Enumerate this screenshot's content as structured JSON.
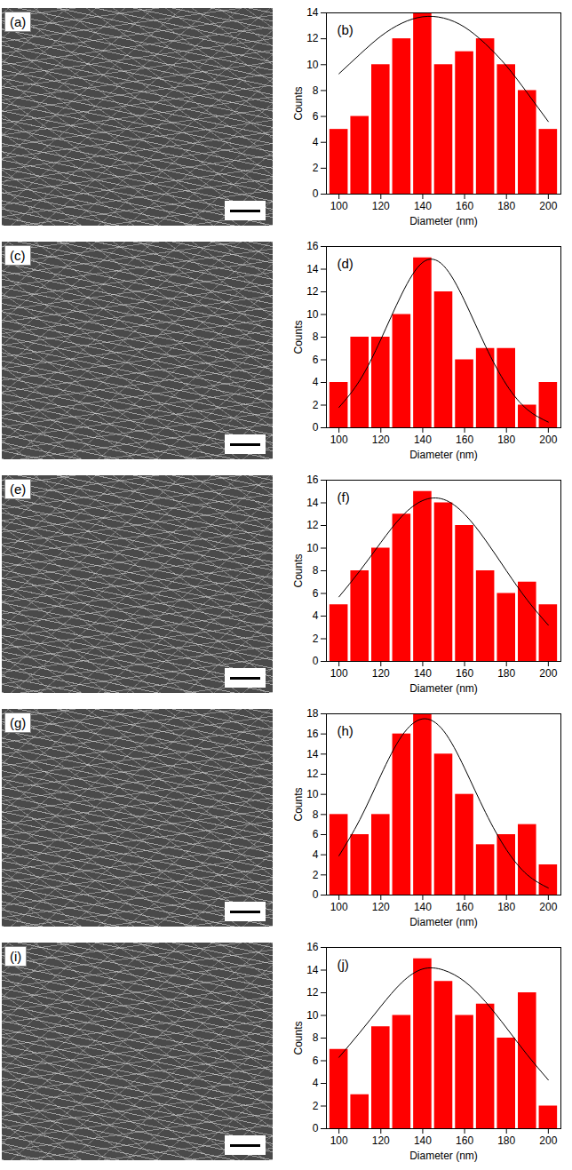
{
  "images": [
    "(a)",
    "(c)",
    "(e)",
    "(g)",
    "(i)"
  ],
  "chart_data": [
    {
      "type": "histogram",
      "title": "(b)",
      "x_label": "Diameter (nm)",
      "y_label": "Counts",
      "color": "#ff0000",
      "bins": [
        95,
        105,
        115,
        125,
        135,
        145,
        155,
        165,
        175,
        185,
        195,
        205
      ],
      "counts": [
        5,
        6,
        10,
        12,
        14,
        10,
        11,
        12,
        10,
        8,
        5
      ],
      "fit_x": [
        100,
        110,
        120,
        130,
        140,
        150,
        160,
        170,
        180,
        190,
        200
      ],
      "fit_y": [
        9.3,
        10.8,
        12.2,
        13.2,
        13.7,
        13.6,
        12.9,
        11.6,
        9.9,
        7.8,
        5.6
      ],
      "xlim": [
        94,
        206
      ],
      "xticks": [
        100,
        120,
        140,
        160,
        180,
        200
      ],
      "ylim": [
        0,
        14
      ],
      "yticks": [
        0,
        2,
        4,
        6,
        8,
        10,
        12,
        14
      ]
    },
    {
      "type": "histogram",
      "title": "(d)",
      "x_label": "Diameter (nm)",
      "y_label": "Counts",
      "color": "#ff0000",
      "bins": [
        95,
        105,
        115,
        125,
        135,
        145,
        155,
        165,
        175,
        185,
        195,
        205
      ],
      "counts": [
        4,
        8,
        8,
        10,
        15,
        12,
        6,
        7,
        7,
        2,
        4
      ],
      "fit_x": [
        100,
        110,
        120,
        130,
        140,
        150,
        160,
        170,
        180,
        190,
        200
      ],
      "fit_y": [
        1.8,
        4.2,
        7.8,
        11.8,
        14.6,
        14.3,
        11.2,
        7.2,
        3.8,
        1.6,
        0.5
      ],
      "xlim": [
        94,
        206
      ],
      "xticks": [
        100,
        120,
        140,
        160,
        180,
        200
      ],
      "ylim": [
        0,
        16
      ],
      "yticks": [
        0,
        2,
        4,
        6,
        8,
        10,
        12,
        14,
        16
      ]
    },
    {
      "type": "histogram",
      "title": "(f)",
      "x_label": "Diameter (nm)",
      "y_label": "Counts",
      "color": "#ff0000",
      "bins": [
        95,
        105,
        115,
        125,
        135,
        145,
        155,
        165,
        175,
        185,
        195,
        205
      ],
      "counts": [
        5,
        8,
        10,
        13,
        15,
        14,
        12,
        8,
        6,
        7,
        5
      ],
      "fit_x": [
        100,
        110,
        120,
        130,
        140,
        150,
        160,
        170,
        180,
        190,
        200
      ],
      "fit_y": [
        5.7,
        8.0,
        10.5,
        12.8,
        14.2,
        14.3,
        13.0,
        10.7,
        8.0,
        5.4,
        3.2
      ],
      "xlim": [
        94,
        206
      ],
      "xticks": [
        100,
        120,
        140,
        160,
        180,
        200
      ],
      "ylim": [
        0,
        16
      ],
      "yticks": [
        0,
        2,
        4,
        6,
        8,
        10,
        12,
        14,
        16
      ]
    },
    {
      "type": "histogram",
      "title": "(h)",
      "x_label": "Diameter (nm)",
      "y_label": "Counts",
      "color": "#ff0000",
      "bins": [
        95,
        105,
        115,
        125,
        135,
        145,
        155,
        165,
        175,
        185,
        195,
        205
      ],
      "counts": [
        8,
        6,
        8,
        16,
        18,
        14,
        10,
        5,
        6,
        7,
        3
      ],
      "fit_x": [
        100,
        110,
        120,
        130,
        140,
        150,
        160,
        170,
        180,
        190,
        200
      ],
      "fit_y": [
        3.9,
        7.5,
        11.9,
        15.8,
        17.5,
        16.3,
        12.6,
        8.2,
        4.5,
        2.0,
        0.7
      ],
      "xlim": [
        94,
        206
      ],
      "xticks": [
        100,
        120,
        140,
        160,
        180,
        200
      ],
      "ylim": [
        0,
        18
      ],
      "yticks": [
        0,
        2,
        4,
        6,
        8,
        10,
        12,
        14,
        16,
        18
      ]
    },
    {
      "type": "histogram",
      "title": "(j)",
      "x_label": "Diameter (nm)",
      "y_label": "Counts",
      "color": "#ff0000",
      "bins": [
        95,
        105,
        115,
        125,
        135,
        145,
        155,
        165,
        175,
        185,
        195,
        205
      ],
      "counts": [
        7,
        3,
        9,
        10,
        15,
        13,
        10,
        11,
        8,
        12,
        2
      ],
      "fit_x": [
        100,
        110,
        120,
        130,
        140,
        150,
        160,
        170,
        180,
        190,
        200
      ],
      "fit_y": [
        6.3,
        8.5,
        10.8,
        12.9,
        14.1,
        14.0,
        13.0,
        11.2,
        8.9,
        6.5,
        4.3
      ],
      "xlim": [
        94,
        206
      ],
      "xticks": [
        100,
        120,
        140,
        160,
        180,
        200
      ],
      "ylim": [
        0,
        16
      ],
      "yticks": [
        0,
        2,
        4,
        6,
        8,
        10,
        12,
        14,
        16
      ]
    }
  ]
}
